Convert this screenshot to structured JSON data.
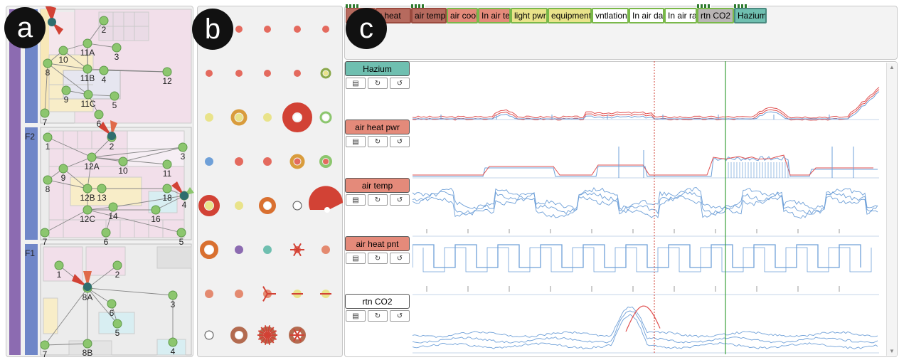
{
  "badges": {
    "a": "a",
    "b": "b",
    "c": "c"
  },
  "floors": {
    "names": [
      "F2",
      "F1"
    ],
    "f3_nodes": [
      "2",
      "11A",
      "3",
      "10",
      "8",
      "11B",
      "4",
      "12",
      "9",
      "11C",
      "5",
      "6",
      "7"
    ],
    "f2_nodes": [
      "1",
      "2",
      "3",
      "9",
      "12A",
      "10",
      "11",
      "8",
      "12B",
      "13",
      "18",
      "4",
      "12C",
      "14",
      "16",
      "7",
      "6",
      "5"
    ],
    "f1_nodes": [
      "1",
      "2",
      "8A",
      "6",
      "3",
      "5",
      "7",
      "8B",
      "4"
    ]
  },
  "variable_tags": [
    "r heat",
    "air temp",
    "air cool",
    "In air te",
    "light pwr",
    "equipment",
    "vntlation",
    "In air da",
    "In air ra",
    "rtn CO2",
    "Hazium"
  ],
  "series_labels": [
    "Hazium",
    "air heat pwr",
    "air temp",
    "air heat pnt",
    "rtn CO2"
  ],
  "button_icons": [
    "book-icon",
    "redo-icon",
    "undo-icon"
  ],
  "colors": {
    "red": "#e46a5e",
    "green": "#8cc66e",
    "yellow": "#e9e38a",
    "teal": "#6fbfb0",
    "blue": "#6fa0d8",
    "purple": "#8c6bb1"
  }
}
